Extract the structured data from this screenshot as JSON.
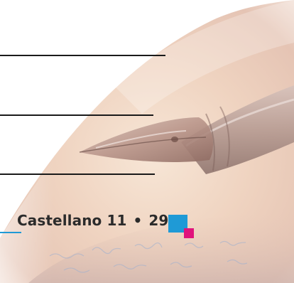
{
  "footer": {
    "subject": "Castellano 11",
    "separator": "•",
    "page_number": "29"
  },
  "colors": {
    "accent_blue": "#1f9ad6",
    "accent_magenta": "#e0137c",
    "text": "#2b2b2b"
  },
  "decor": {
    "image_icon": "fountain-pen-nib-photo"
  }
}
